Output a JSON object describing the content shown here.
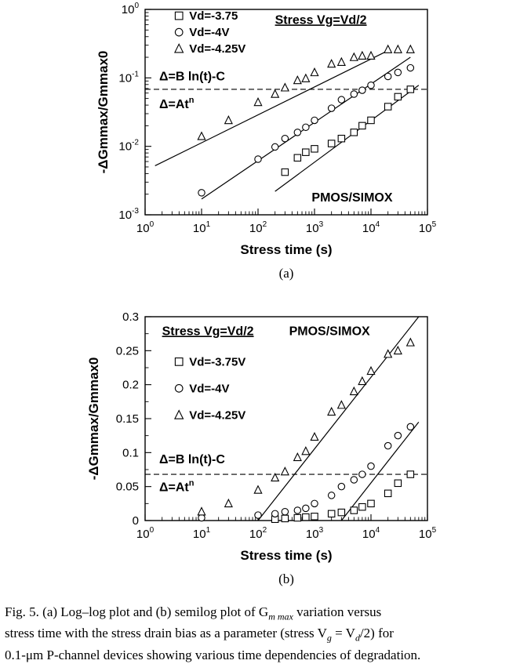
{
  "chart_data": [
    {
      "type": "scatter",
      "panel_label": "(a)",
      "x_scale": "log",
      "y_scale": "log",
      "xlabel": "Stress time (s)",
      "ylabel": "-ΔGmmax/Gmmax0",
      "xlim": [
        1,
        100000
      ],
      "ylim": [
        0.001,
        1
      ],
      "x_ticks": [
        {
          "v": 1,
          "e": "0"
        },
        {
          "v": 10,
          "e": "1"
        },
        {
          "v": 100,
          "e": "2"
        },
        {
          "v": 1000,
          "e": "3"
        },
        {
          "v": 10000,
          "e": "4"
        },
        {
          "v": 100000,
          "e": "5"
        }
      ],
      "y_ticks": [
        {
          "v": 0.001,
          "e": "-3"
        },
        {
          "v": 0.01,
          "e": "-2"
        },
        {
          "v": 0.1,
          "e": "-1"
        },
        {
          "v": 1,
          "e": "0"
        }
      ],
      "tick_base": "10",
      "legend": [
        {
          "marker": "square",
          "label": "Vd=-3.75"
        },
        {
          "marker": "circle",
          "label": "Vd=-4V"
        },
        {
          "marker": "triangle",
          "label": "Vd=-4.25V"
        }
      ],
      "annotations": [
        "Stress Vg=Vd/2",
        "Δ=B ln(t)-C",
        "Δ=At",
        "n",
        "PMOS/SIMOX"
      ],
      "threshold": 0.068,
      "series": [
        {
          "marker": "square",
          "x": [
            300,
            500,
            700,
            1000,
            2000,
            3000,
            5000,
            7000,
            10000,
            20000,
            30000,
            50000
          ],
          "y": [
            0.0042,
            0.0068,
            0.0082,
            0.0092,
            0.011,
            0.013,
            0.016,
            0.02,
            0.024,
            0.038,
            0.053,
            0.068
          ]
        },
        {
          "marker": "circle",
          "x": [
            10,
            100,
            200,
            300,
            500,
            700,
            1000,
            2000,
            3000,
            5000,
            7000,
            10000,
            20000,
            30000,
            50000
          ],
          "y": [
            0.0021,
            0.0065,
            0.0098,
            0.013,
            0.016,
            0.019,
            0.024,
            0.036,
            0.048,
            0.058,
            0.066,
            0.078,
            0.105,
            0.12,
            0.14
          ]
        },
        {
          "marker": "triangle",
          "x": [
            10,
            30,
            100,
            200,
            300,
            500,
            700,
            1000,
            2000,
            3000,
            5000,
            7000,
            10000,
            20000,
            30000,
            50000
          ],
          "y": [
            0.014,
            0.024,
            0.044,
            0.058,
            0.072,
            0.092,
            0.098,
            0.12,
            0.16,
            0.17,
            0.2,
            0.21,
            0.21,
            0.26,
            0.26,
            0.26
          ]
        }
      ],
      "fit_lines": [
        {
          "x": [
            1.5,
            20000
          ],
          "y": [
            0.0052,
            0.25
          ]
        },
        {
          "x": [
            10,
            50000
          ],
          "y": [
            0.0017,
            0.2
          ]
        },
        {
          "x": [
            200,
            70000
          ],
          "y": [
            0.0022,
            0.078
          ]
        }
      ]
    },
    {
      "type": "scatter",
      "panel_label": "(b)",
      "x_scale": "log",
      "y_scale": "linear",
      "xlabel": "Stress time (s)",
      "ylabel": "-ΔGmmax/Gmmax0",
      "xlim": [
        1,
        100000
      ],
      "ylim": [
        0,
        0.3
      ],
      "x_ticks": [
        {
          "v": 1,
          "e": "0"
        },
        {
          "v": 10,
          "e": "1"
        },
        {
          "v": 100,
          "e": "2"
        },
        {
          "v": 1000,
          "e": "3"
        },
        {
          "v": 10000,
          "e": "4"
        },
        {
          "v": 100000,
          "e": "5"
        }
      ],
      "y_ticks": [
        {
          "v": 0,
          "t": "0"
        },
        {
          "v": 0.05,
          "t": "0.05"
        },
        {
          "v": 0.1,
          "t": "0.1"
        },
        {
          "v": 0.15,
          "t": "0.15"
        },
        {
          "v": 0.2,
          "t": "0.2"
        },
        {
          "v": 0.25,
          "t": "0.25"
        },
        {
          "v": 0.3,
          "t": "0.3"
        }
      ],
      "tick_base": "10",
      "legend": [
        {
          "marker": "square",
          "label": "Vd=-3.75V"
        },
        {
          "marker": "circle",
          "label": "Vd=-4V"
        },
        {
          "marker": "triangle",
          "label": "Vd=-4.25V"
        }
      ],
      "annotations": [
        "Stress Vg=Vd/2",
        "PMOS/SIMOX",
        "Δ=B ln(t)-C",
        "Δ=At",
        "n"
      ],
      "threshold": 0.068,
      "series": [
        {
          "marker": "square",
          "x": [
            200,
            300,
            500,
            700,
            1000,
            2000,
            3000,
            5000,
            7000,
            10000,
            20000,
            30000,
            50000
          ],
          "y": [
            0.002,
            0.003,
            0.004,
            0.005,
            0.006,
            0.01,
            0.012,
            0.015,
            0.02,
            0.025,
            0.04,
            0.055,
            0.068
          ]
        },
        {
          "marker": "circle",
          "x": [
            10,
            100,
            200,
            300,
            500,
            700,
            1000,
            2000,
            3000,
            5000,
            7000,
            10000,
            20000,
            30000,
            50000
          ],
          "y": [
            0.004,
            0.008,
            0.01,
            0.013,
            0.015,
            0.018,
            0.025,
            0.037,
            0.05,
            0.06,
            0.068,
            0.08,
            0.11,
            0.125,
            0.138
          ]
        },
        {
          "marker": "triangle",
          "x": [
            10,
            30,
            100,
            200,
            300,
            500,
            700,
            1000,
            2000,
            3000,
            5000,
            7000,
            10000,
            20000,
            30000,
            50000
          ],
          "y": [
            0.013,
            0.025,
            0.045,
            0.063,
            0.072,
            0.093,
            0.102,
            0.123,
            0.16,
            0.17,
            0.19,
            0.205,
            0.22,
            0.245,
            0.25,
            0.262
          ]
        }
      ],
      "fit_lines": [
        {
          "x": [
            100,
            70000
          ],
          "y": [
            0.0,
            0.3
          ]
        },
        {
          "x": [
            3000,
            70000
          ],
          "y": [
            0.0,
            0.145
          ]
        }
      ]
    }
  ],
  "caption": {
    "line1": "Fig. 5.   (a) Log–log plot and (b) semilog plot of G",
    "line1_sub": "m max",
    "line1_end": " variation versus",
    "line2": "stress time with the stress drain bias as a parameter (stress V",
    "line2_sub1": "g",
    "line2_mid": " = V",
    "line2_sub2": "d",
    "line2_end": "/2) for",
    "line3": "0.1-μm P-channel devices showing various time dependencies of degradation."
  }
}
